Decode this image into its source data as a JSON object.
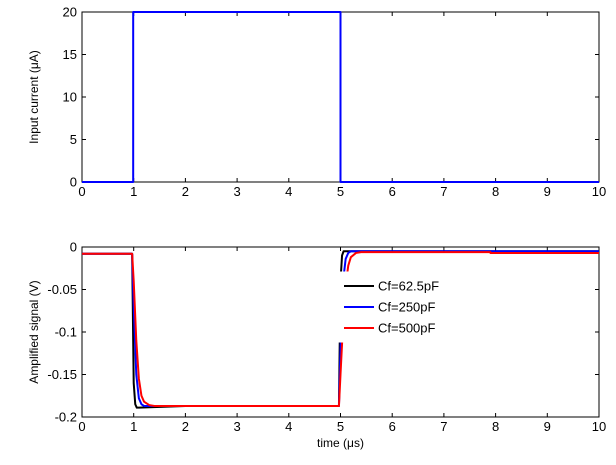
{
  "chart_data": [
    {
      "type": "line",
      "title": "",
      "xlabel": "",
      "ylabel": "Input current (μA)",
      "xlim": [
        0,
        10
      ],
      "ylim": [
        0,
        20
      ],
      "xticks": [
        "0",
        "1",
        "2",
        "3",
        "4",
        "5",
        "6",
        "7",
        "8",
        "9",
        "10"
      ],
      "yticks": [
        "0",
        "5",
        "10",
        "15",
        "20"
      ],
      "grid": false,
      "series": [
        {
          "color": "#0000ff",
          "x": [
            0,
            0.99,
            0.99,
            1.0,
            1.0,
            4.99,
            4.99,
            5.0,
            5.0,
            10
          ],
          "y": [
            0,
            0,
            20,
            20,
            20,
            20,
            20,
            20,
            0,
            0
          ]
        }
      ]
    },
    {
      "type": "line",
      "title": "",
      "xlabel": "time (μs)",
      "ylabel": "Amplified signal (V)",
      "xlim": [
        0,
        10
      ],
      "ylim": [
        -0.2,
        0
      ],
      "xticks": [
        "0",
        "1",
        "2",
        "3",
        "4",
        "5",
        "6",
        "7",
        "8",
        "9",
        "10"
      ],
      "yticks": [
        "0",
        "-0.05",
        "-0.1",
        "-0.15",
        "-0.2"
      ],
      "grid": false,
      "legend": "center",
      "series": [
        {
          "name": "Cf=62.5pF",
          "color": "#000000",
          "x": [
            0,
            0.97,
            1.0,
            1.03,
            1.06,
            1.1,
            2.0,
            4.97,
            5.0,
            5.03,
            5.06,
            5.1,
            10
          ],
          "y": [
            -0.008,
            -0.008,
            -0.16,
            -0.185,
            -0.189,
            -0.189,
            -0.187,
            -0.187,
            -0.04,
            -0.01,
            -0.005,
            -0.005,
            -0.005
          ]
        },
        {
          "name": "Cf=250pF",
          "color": "#0000ff",
          "x": [
            0,
            0.97,
            1.0,
            1.05,
            1.1,
            1.15,
            1.2,
            2.0,
            4.97,
            5.0,
            5.05,
            5.1,
            5.15,
            5.2,
            10
          ],
          "y": [
            -0.008,
            -0.008,
            -0.07,
            -0.15,
            -0.178,
            -0.185,
            -0.187,
            -0.187,
            -0.187,
            -0.12,
            -0.04,
            -0.014,
            -0.007,
            -0.005,
            -0.005
          ]
        },
        {
          "name": "Cf=500pF",
          "color": "#ff0000",
          "x": [
            0,
            0.97,
            1.0,
            1.05,
            1.1,
            1.15,
            1.2,
            1.3,
            1.4,
            2.0,
            4.97,
            5.0,
            5.05,
            5.1,
            5.15,
            5.2,
            5.3,
            5.4,
            7.9,
            7.9,
            10
          ],
          "y": [
            -0.008,
            -0.008,
            -0.04,
            -0.11,
            -0.155,
            -0.175,
            -0.182,
            -0.186,
            -0.187,
            -0.187,
            -0.187,
            -0.15,
            -0.09,
            -0.045,
            -0.022,
            -0.012,
            -0.007,
            -0.006,
            -0.006,
            -0.007,
            -0.007
          ]
        }
      ]
    }
  ]
}
